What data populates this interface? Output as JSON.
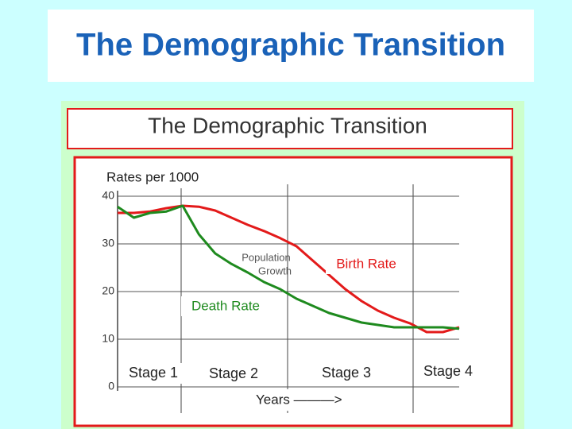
{
  "slide_title": "The Demographic Transition",
  "chart_data": {
    "type": "line",
    "title": "The Demographic Transition",
    "y_label": "Rates per 1000",
    "x_label": "Years ———>",
    "categories": [
      null,
      null,
      null,
      null,
      null,
      null,
      null,
      null,
      null,
      null,
      null,
      null,
      null,
      null,
      null,
      null,
      null,
      null,
      null,
      null,
      null,
      null
    ],
    "series": [
      {
        "name": "Birth Rate",
        "color": "#e31a1a",
        "values": [
          36.5,
          36.5,
          36.8,
          37.5,
          38,
          37.8,
          37,
          35.5,
          34,
          32.7,
          31.2,
          29.5,
          26.5,
          23.5,
          20.5,
          18,
          16,
          14.5,
          13.3,
          11.5,
          11.5,
          12.5
        ]
      },
      {
        "name": "Death Rate",
        "color": "#1e8a1e",
        "values": [
          37.8,
          35.5,
          36.5,
          36.8,
          38,
          32,
          28,
          25.8,
          24,
          22,
          20.5,
          18.5,
          17,
          15.5,
          14.5,
          13.5,
          13,
          12.5,
          12.5,
          12.5,
          12.5,
          12.2
        ]
      }
    ],
    "annotations": [
      "Population",
      "Growth"
    ],
    "stages": [
      "Stage 1",
      "Stage 2",
      "Stage 3",
      "Stage 4"
    ],
    "ylim": [
      0,
      40
    ],
    "yticks": [
      0,
      10,
      20,
      30,
      40
    ],
    "grid": true
  }
}
